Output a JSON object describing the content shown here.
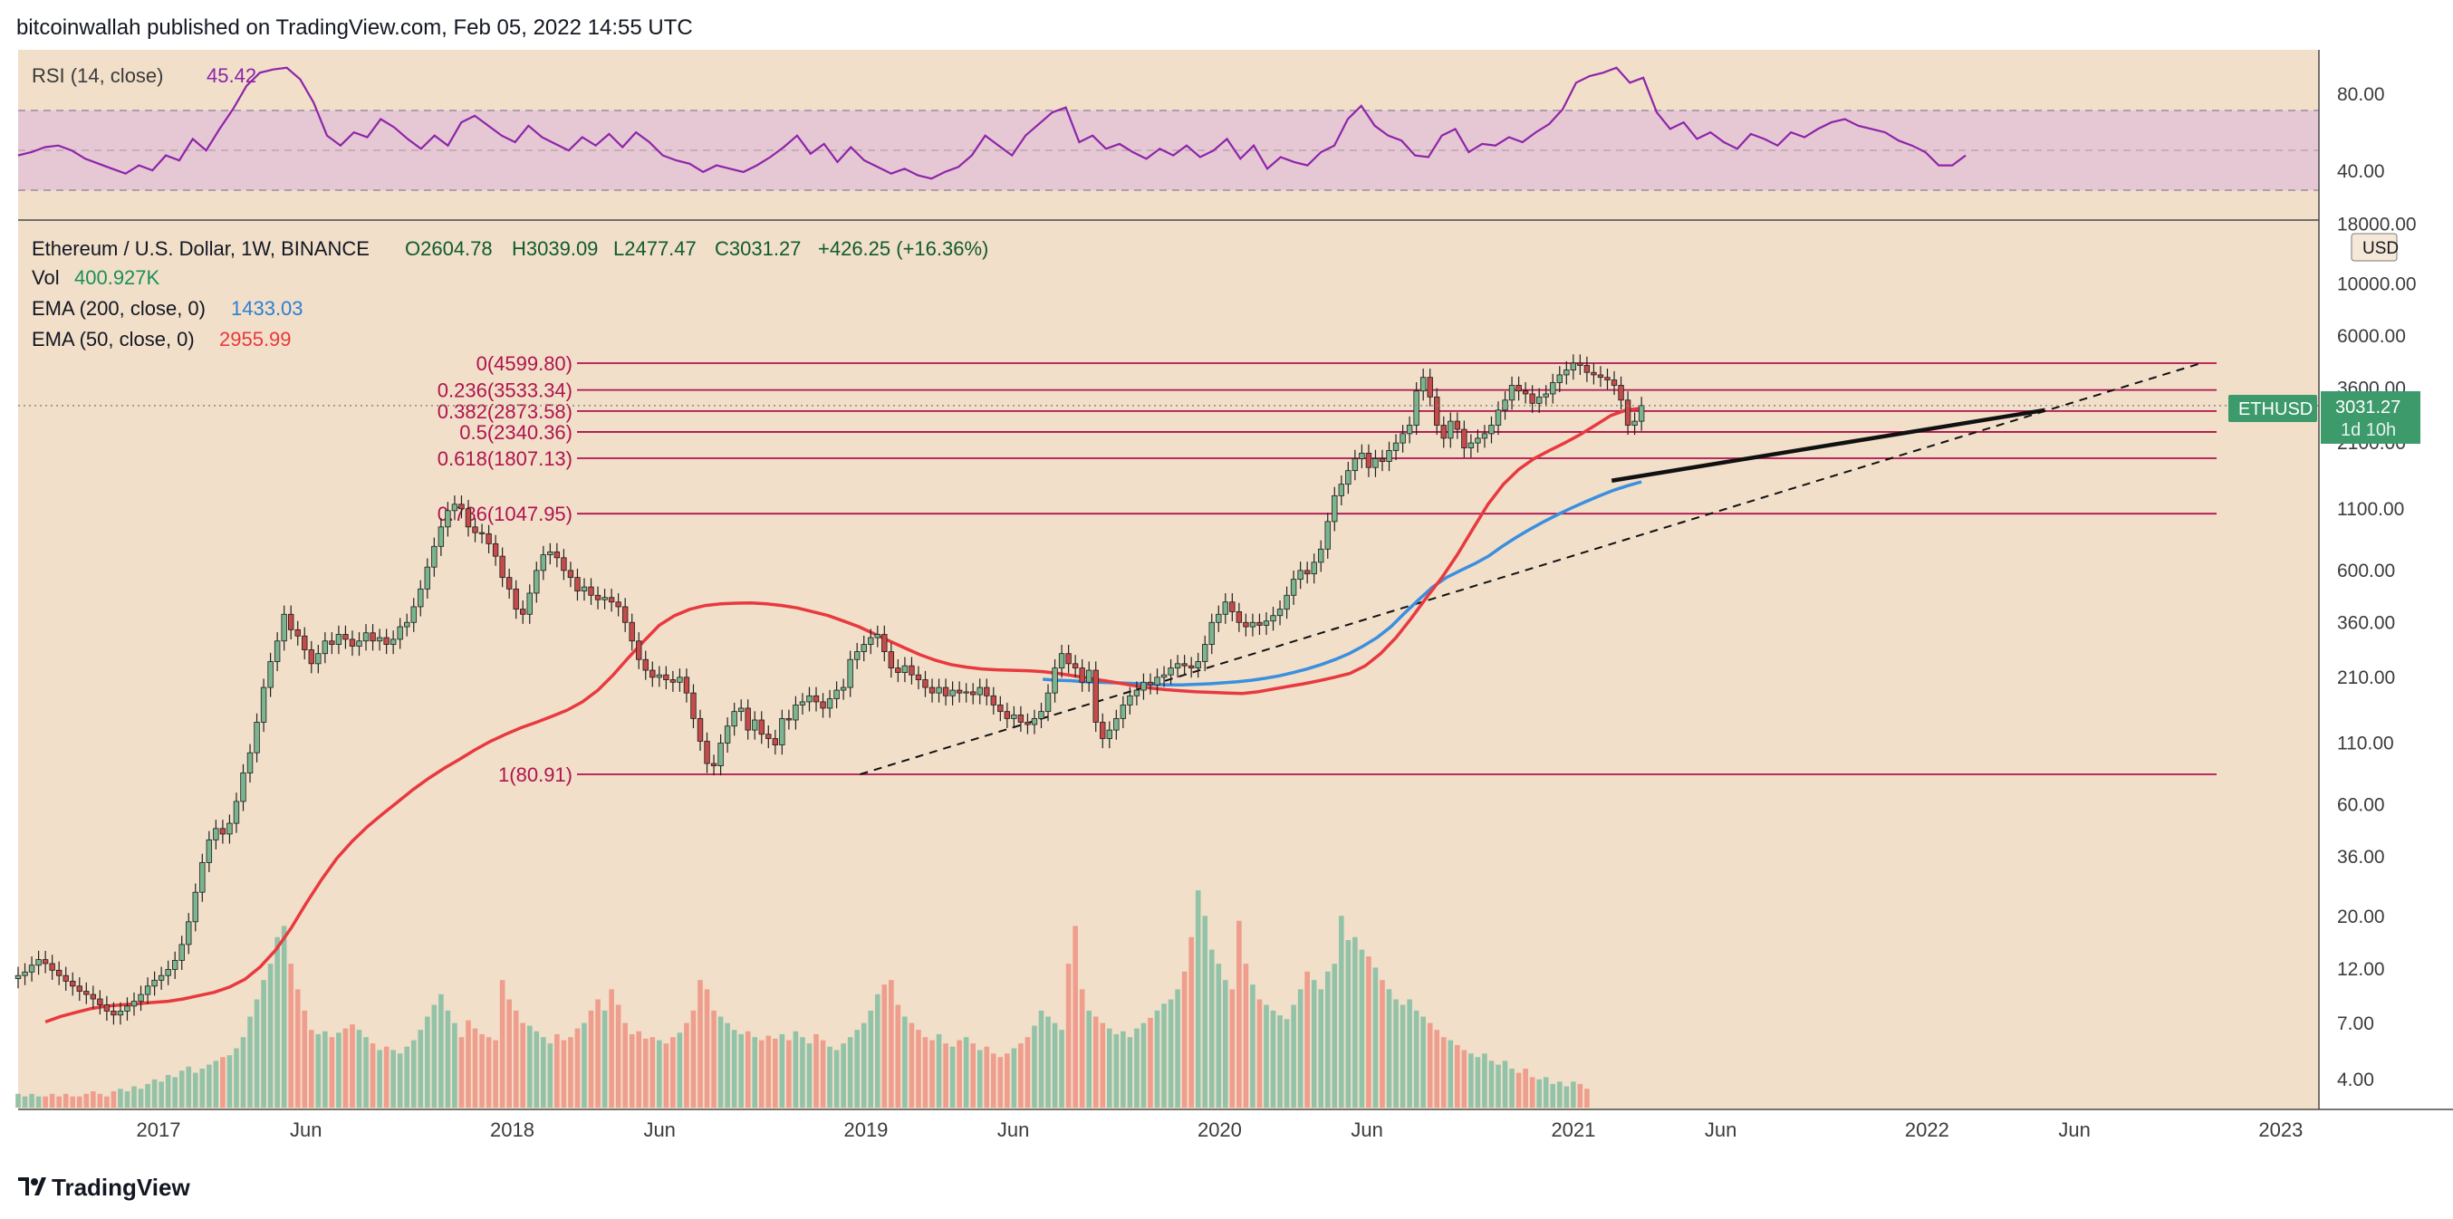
{
  "header": {
    "published_line": "bitcoinwallah published on TradingView.com, Feb 05, 2022 14:55 UTC"
  },
  "footer": {
    "brand": "TradingView"
  },
  "colors": {
    "background": "#f1dfc9",
    "rsi_band": "#e5c8d3",
    "rsi_line": "#8e24aa",
    "ema50": "#e8393f",
    "ema200": "#3a8fdf",
    "fib": "#b0134e",
    "candle_up": "#1f6b3c",
    "candle_down": "#c44b49",
    "vol_up": "#92c3a8",
    "vol_down": "#ef9d8d",
    "price_tag": "#3c9a6b"
  },
  "rsi_pane": {
    "title": "RSI (14, close)",
    "value": "45.42",
    "tick_labels": [
      "80.00",
      "40.00"
    ],
    "values": [
      46,
      48,
      51,
      52,
      49,
      44,
      41,
      38,
      35,
      40,
      37,
      46,
      43,
      56,
      49,
      62,
      74,
      88,
      96,
      98,
      99,
      92,
      78,
      58,
      52,
      60,
      57,
      68,
      63,
      56,
      50,
      58,
      52,
      66,
      70,
      64,
      58,
      54,
      64,
      57,
      53,
      49,
      57,
      52,
      59,
      51,
      60,
      54,
      46,
      43,
      41,
      36,
      40,
      38,
      36,
      40,
      45,
      51,
      58,
      47,
      53,
      42,
      51,
      43,
      39,
      35,
      38,
      34,
      32,
      36,
      39,
      46,
      58,
      52,
      46,
      58,
      65,
      72,
      75,
      54,
      58,
      50,
      53,
      48,
      44,
      50,
      46,
      52,
      45,
      49,
      56,
      44,
      52,
      38,
      45,
      42,
      40,
      48,
      52,
      68,
      76,
      64,
      58,
      55,
      46,
      45,
      58,
      62,
      48,
      53,
      52,
      57,
      54,
      60,
      65,
      74,
      90,
      94,
      96,
      99,
      90,
      93,
      72,
      62,
      66,
      56,
      60,
      54,
      50,
      59,
      56,
      52,
      60,
      57,
      62,
      66,
      68,
      64,
      62,
      60,
      55,
      52,
      48,
      40,
      40,
      46
    ]
  },
  "legend": {
    "symbol_line": {
      "name": "Ethereum / U.S. Dollar, 1W, BINANCE",
      "o": "O2604.78",
      "h": "H3039.09",
      "l": "L2477.47",
      "c": "C3031.27",
      "change": "+426.25 (+16.36%)"
    },
    "vol": {
      "label": "Vol",
      "value": "400.927K"
    },
    "ema200": {
      "label": "EMA (200, close, 0)",
      "value": "1433.03"
    },
    "ema50": {
      "label": "EMA (50, close, 0)",
      "value": "2955.99"
    }
  },
  "price_axis": {
    "currency": "USD",
    "tick_labels": [
      "18000.00",
      "10000.00",
      "6000.00",
      "3600.00",
      "2100.00",
      "1100.00",
      "600.00",
      "360.00",
      "210.00",
      "110.00",
      "60.00",
      "36.00",
      "20.00",
      "12.00",
      "7.00",
      "4.00"
    ],
    "tag_symbol": "ETHUSD",
    "tag_price": "3031.27",
    "tag_countdown": "1d 10h"
  },
  "time_axis": {
    "labels": [
      "2017",
      "Jun",
      "2018",
      "Jun",
      "2019",
      "Jun",
      "2020",
      "Jun",
      "2021",
      "Jun",
      "2022",
      "Jun",
      "2023"
    ]
  },
  "fib_levels": [
    {
      "label": "0(4599.80)",
      "price": 4599.8
    },
    {
      "label": "0.236(3533.34)",
      "price": 3533.34
    },
    {
      "label": "0.382(2873.58)",
      "price": 2873.58
    },
    {
      "label": "0.5(2340.36)",
      "price": 2340.36
    },
    {
      "label": "0.618(1807.13)",
      "price": 1807.13
    },
    {
      "label": "0.786(1047.95)",
      "price": 1047.95
    },
    {
      "label": "1(80.91)",
      "price": 80.91
    }
  ],
  "chart_data": {
    "type": "candlestick",
    "title": "Ethereum / U.S. Dollar, 1W, BINANCE",
    "y_scale": "log",
    "ylim": [
      3.2,
      20000
    ],
    "x_range": [
      "2016-07",
      "2023-03"
    ],
    "close_series_weekly": [
      11.2,
      11.6,
      12.4,
      13.1,
      12.6,
      11.8,
      11.2,
      10.6,
      10.1,
      9.6,
      9.3,
      8.9,
      8.4,
      7.9,
      7.6,
      7.9,
      8.3,
      8.7,
      9.3,
      10.1,
      10.7,
      11.2,
      11.9,
      13.0,
      15.2,
      19.0,
      25.4,
      34.0,
      42.5,
      47.5,
      45.0,
      50.0,
      62.0,
      82.0,
      100.0,
      135.0,
      190.0,
      245.0,
      300.0,
      390.0,
      335.0,
      315.0,
      275.0,
      240.0,
      265.0,
      300.0,
      290.0,
      320.0,
      305.0,
      285.0,
      300.0,
      325.0,
      300.0,
      310.0,
      290.0,
      305.0,
      345.0,
      360.0,
      420.0,
      500.0,
      620.0,
      760.0,
      920.0,
      1080.0,
      1150.0,
      1100.0,
      920.0,
      870.0,
      860.0,
      780.0,
      690.0,
      560.0,
      500.0,
      410.0,
      390.0,
      480.0,
      600.0,
      700.0,
      720.0,
      680.0,
      600.0,
      560.0,
      490.0,
      510.0,
      470.0,
      450.0,
      460.0,
      440.0,
      420.0,
      360.0,
      300.0,
      250.0,
      225.0,
      210.0,
      215.0,
      205.0,
      200.0,
      210.0,
      180.0,
      140.0,
      112.0,
      90.0,
      88.0,
      110.0,
      130.0,
      150.0,
      155.0,
      125.0,
      138.0,
      120.0,
      115.0,
      108.0,
      140.0,
      138.0,
      160.0,
      165.0,
      175.0,
      165.0,
      155.0,
      170.0,
      185.0,
      190.0,
      250.0,
      270.0,
      290.0,
      310.0,
      320.0,
      270.0,
      230.0,
      220.0,
      235.0,
      215.0,
      205.0,
      190.0,
      180.0,
      190.0,
      175.0,
      185.0,
      180.0,
      182.0,
      177.0,
      190.0,
      175.0,
      160.0,
      150.0,
      140.0,
      145.0,
      135.0,
      132.0,
      140.0,
      150.0,
      180.0,
      230.0,
      265.0,
      240.0,
      230.0,
      200.0,
      225.0,
      135.0,
      115.0,
      125.0,
      140.0,
      160.0,
      175.0,
      185.0,
      200.0,
      195.0,
      210.0,
      215.0,
      230.0,
      240.0,
      235.0,
      230.0,
      245.0,
      290.0,
      360.0,
      390.0,
      440.0,
      400.0,
      360.0,
      345.0,
      360.0,
      350.0,
      365.0,
      385.0,
      410.0,
      470.0,
      550.0,
      600.0,
      580.0,
      650.0,
      740.0,
      970.0,
      1250.0,
      1400.0,
      1600.0,
      1800.0,
      1900.0,
      1650.0,
      1800.0,
      1750.0,
      1950.0,
      2100.0,
      2300.0,
      2500.0,
      3500.0,
      4000.0,
      3300.0,
      2500.0,
      2200.0,
      2600.0,
      2400.0,
      2000.0,
      2100.0,
      2200.0,
      2300.0,
      2500.0,
      2900.0,
      3200.0,
      3700.0,
      3500.0,
      3400.0,
      3100.0,
      3300.0,
      3400.0,
      3800.0,
      4100.0,
      4300.0,
      4600.0,
      4500.0,
      4200.0,
      4100.0,
      4000.0,
      3900.0,
      3700.0,
      3200.0,
      2500.0,
      2600.0,
      3031.27
    ],
    "ema50_weekly": [
      7.1,
      7.5,
      7.8,
      8.1,
      8.3,
      8.4,
      8.5,
      8.6,
      8.7,
      8.9,
      9.2,
      9.5,
      10.0,
      10.8,
      12.2,
      14.4,
      17.8,
      22.8,
      28.8,
      35.5,
      42.0,
      48.5,
      55.0,
      62.0,
      70.0,
      78.0,
      86.0,
      94.0,
      103.0,
      112.0,
      120.0,
      128.0,
      135.0,
      143.0,
      152.0,
      165.0,
      185.0,
      215.0,
      255.0,
      300.0,
      350.0,
      385.0,
      410.0,
      425.0,
      432.0,
      435.0,
      436.0,
      432.0,
      425.0,
      415.0,
      400.0,
      385.0,
      365.0,
      345.0,
      322.0,
      300.0,
      280.0,
      262.0,
      248.0,
      238.0,
      232.0,
      228.0,
      226.0,
      225.0,
      224.0,
      222.0,
      218.0,
      213.0,
      208.0,
      203.0,
      198.0,
      193.0,
      189.0,
      186.0,
      184.0,
      182.0,
      181.0,
      180.0,
      179.0,
      182.0,
      187.0,
      192.0,
      197.0,
      203.0,
      210.0,
      218.0,
      235.0,
      265.0,
      310.0,
      375.0,
      460.0,
      560.0,
      700.0,
      900.0,
      1150.0,
      1400.0,
      1620.0,
      1800.0,
      1950.0,
      2100.0,
      2280.0,
      2500.0,
      2750.0,
      2900.0,
      2955.99
    ],
    "ema200_weekly": [
      206.0,
      204.0,
      203.0,
      201.0,
      200.0,
      199.0,
      198.0,
      197.0,
      196.0,
      195.0,
      195.0,
      196.0,
      197.0,
      199.0,
      201.0,
      204.0,
      208.0,
      213.0,
      220.0,
      228.0,
      238.0,
      250.0,
      265.0,
      285.0,
      310.0,
      345.0,
      395.0,
      450.0,
      510.0,
      560.0,
      600.0,
      640.0,
      690.0,
      760.0,
      830.0,
      900.0,
      970.0,
      1040.0,
      1110.0,
      1180.0,
      1250.0,
      1320.0,
      1380.0,
      1433.03
    ],
    "volume_weekly": [
      4.1,
      4.0,
      4.1,
      4.0,
      4.0,
      4.1,
      4.0,
      4.1,
      4.0,
      4.0,
      4.1,
      4.2,
      4.1,
      4.0,
      4.2,
      4.3,
      4.2,
      4.4,
      4.3,
      4.5,
      4.7,
      4.6,
      4.9,
      4.8,
      5.1,
      5.3,
      5.0,
      5.2,
      5.4,
      5.6,
      5.8,
      5.9,
      6.3,
      7.0,
      8.5,
      10.0,
      12.0,
      14.0,
      18.0,
      20.0,
      14.0,
      11.0,
      9.0,
      7.5,
      7.2,
      7.4,
      7.0,
      7.3,
      7.6,
      7.9,
      7.5,
      7.0,
      6.6,
      6.2,
      6.4,
      6.2,
      6.0,
      6.4,
      6.8,
      7.5,
      8.5,
      9.5,
      10.5,
      9.0,
      8.0,
      7.0,
      8.2,
      7.6,
      7.2,
      7.0,
      6.8,
      12.0,
      10.0,
      9.0,
      8.0,
      7.8,
      7.4,
      7.0,
      6.6,
      7.2,
      6.8,
      7.0,
      7.6,
      8.0,
      9.0,
      10.0,
      9.0,
      11.0,
      9.5,
      8.0,
      7.2,
      7.4,
      6.9,
      7.0,
      6.8,
      6.6,
      7.0,
      7.3,
      8.0,
      9.0,
      12.0,
      11.0,
      9.0,
      8.5,
      8.0,
      7.5,
      7.2,
      7.4,
      7.0,
      6.8,
      7.1,
      6.9,
      7.2,
      6.8,
      7.4,
      7.0,
      6.6,
      7.2,
      6.8,
      6.4,
      6.2,
      6.6,
      7.0,
      7.5,
      8.0,
      9.0,
      10.5,
      11.5,
      12.0,
      9.5,
      8.5,
      8.0,
      7.5,
      7.0,
      6.8,
      7.2,
      6.6,
      6.4,
      6.8,
      7.0,
      6.6,
      6.2,
      6.4,
      6.0,
      5.8,
      6.0,
      6.3,
      6.6,
      7.0,
      7.8,
      9.0,
      8.5,
      8.0,
      7.5,
      14.0,
      20.0,
      11.0,
      9.0,
      8.5,
      8.0,
      7.6,
      7.2,
      7.4,
      7.0,
      7.6,
      8.0,
      8.4,
      9.0,
      9.6,
      10.0,
      11.0,
      13.0,
      18.0,
      28.0,
      22.0,
      16.0,
      14.0,
      12.0,
      11.0,
      21.0,
      14.0,
      11.5,
      10.0,
      9.5,
      9.0,
      8.6,
      8.3,
      9.5,
      11.0,
      13.0,
      12.0,
      11.0,
      13.0,
      14.0,
      22.0,
      17.5,
      18.0,
      16.0,
      15.0,
      13.5,
      12.0,
      11.0,
      10.0,
      9.5,
      10.0,
      9.0,
      8.5,
      8.0,
      7.5,
      7.0,
      6.8,
      6.5,
      6.2,
      6.0,
      5.8,
      6.0,
      5.6,
      5.4,
      5.6,
      5.2,
      5.0,
      5.2,
      4.8,
      4.7,
      4.8,
      4.5,
      4.6,
      4.4,
      4.6,
      4.5,
      4.3
    ],
    "rsi_current": 45.42,
    "fib_retracement": [
      {
        "ratio": 0,
        "price": 4599.8
      },
      {
        "ratio": 0.236,
        "price": 3533.34
      },
      {
        "ratio": 0.382,
        "price": 2873.58
      },
      {
        "ratio": 0.5,
        "price": 2340.36
      },
      {
        "ratio": 0.618,
        "price": 1807.13
      },
      {
        "ratio": 0.786,
        "price": 1047.95
      },
      {
        "ratio": 1,
        "price": 80.91
      }
    ],
    "trendlines": [
      {
        "style": "dashed",
        "from": {
          "date": "2018-12",
          "price": 80.91
        },
        "to": {
          "date": "2022-10",
          "price": 4599.8
        }
      },
      {
        "style": "solid",
        "from": {
          "date": "2021-02",
          "price": 1450
        },
        "to": {
          "date": "2022-05",
          "price": 2900
        }
      }
    ]
  }
}
